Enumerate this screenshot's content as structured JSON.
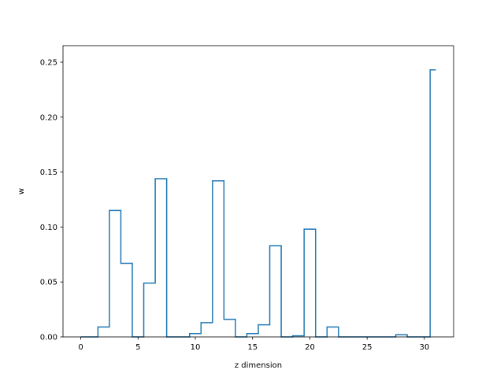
{
  "chart_data": {
    "type": "line",
    "drawstyle": "steps-mid",
    "title": "",
    "xlabel": "z dimension",
    "ylabel": "w",
    "xlim": [
      -1.55,
      32.55
    ],
    "ylim": [
      0.0,
      0.265
    ],
    "xticks": [
      0,
      5,
      10,
      15,
      20,
      25,
      30
    ],
    "yticks": [
      0.0,
      0.05,
      0.1,
      0.15,
      0.2,
      0.25
    ],
    "xtick_labels": [
      "0",
      "5",
      "10",
      "15",
      "20",
      "25",
      "30"
    ],
    "ytick_labels": [
      "0.00",
      "0.05",
      "0.10",
      "0.15",
      "0.20",
      "0.25"
    ],
    "grid": false,
    "legend": "none",
    "line_color": "#1f77b4",
    "series": [
      {
        "x": [
          0,
          1,
          2,
          3,
          4,
          5,
          6,
          7,
          8,
          9,
          10,
          11,
          12,
          13,
          14,
          15,
          16,
          17,
          18,
          19,
          20,
          21,
          22,
          23,
          24,
          25,
          26,
          27,
          28,
          29,
          30,
          31
        ],
        "values": [
          0.0,
          0.0,
          0.009,
          0.115,
          0.067,
          0.0,
          0.049,
          0.144,
          0.0,
          0.0,
          0.003,
          0.013,
          0.142,
          0.016,
          0.0,
          0.003,
          0.011,
          0.083,
          0.0,
          0.001,
          0.098,
          0.0,
          0.009,
          0.0,
          0.0,
          0.0,
          0.0,
          0.0,
          0.002,
          0.0,
          0.0,
          0.243
        ]
      }
    ]
  }
}
